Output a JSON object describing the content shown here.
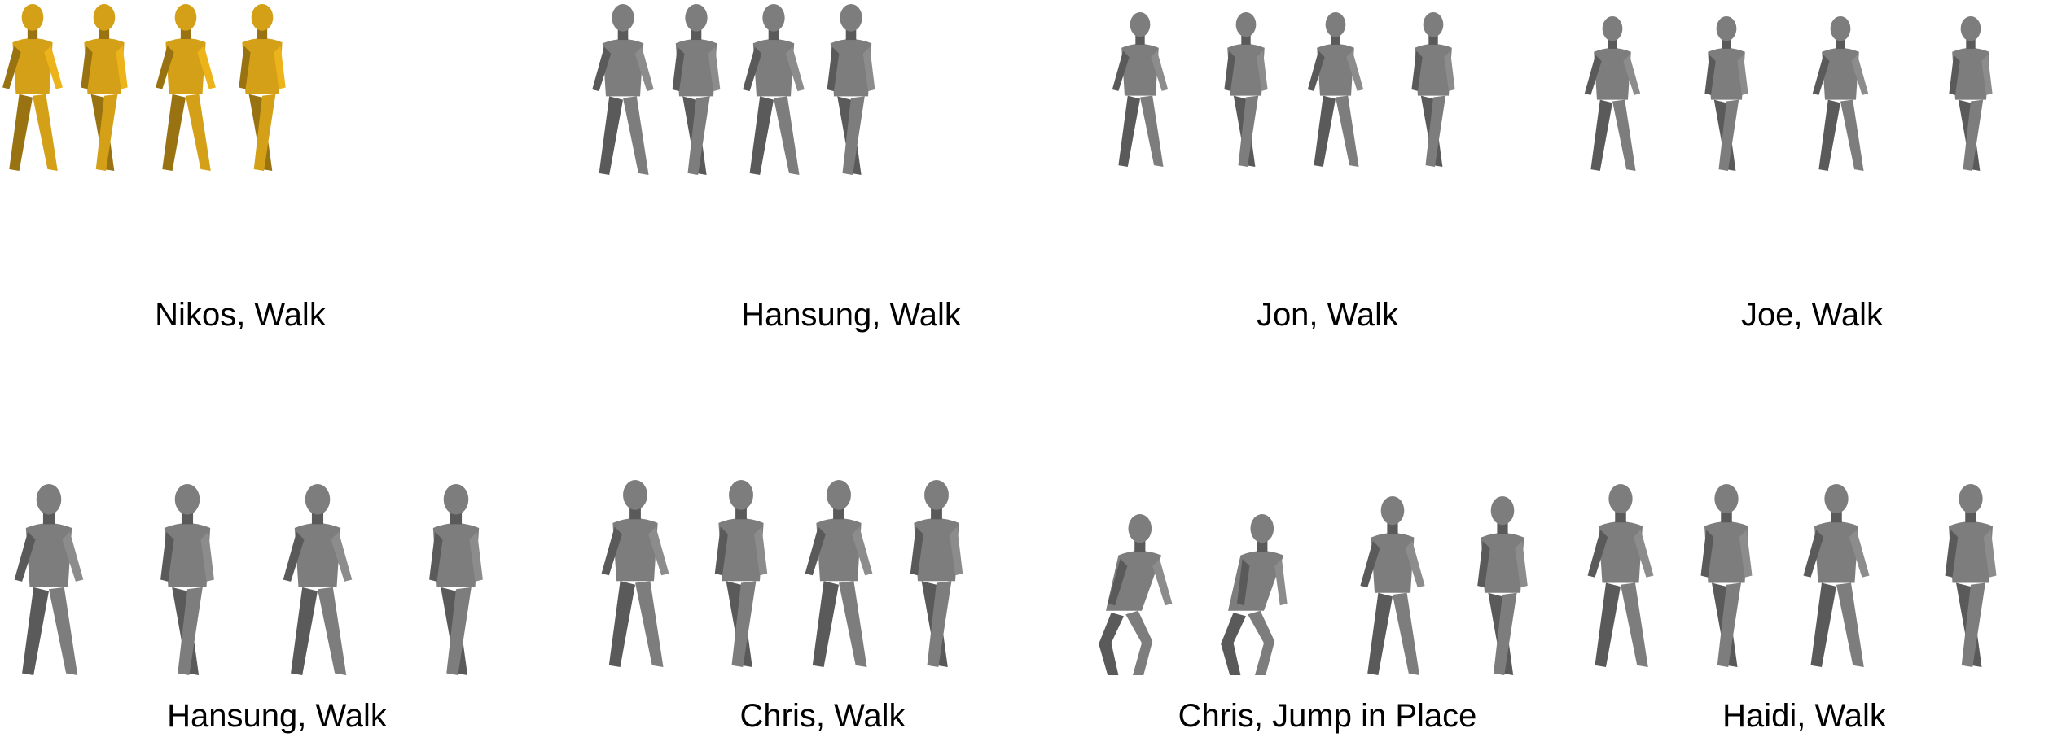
{
  "colors": {
    "gold": "#d4a017",
    "gray": "#7d7d7d",
    "background": "#ffffff"
  },
  "rows": [
    {
      "panels": [
        {
          "caption": "Nikos, Walk",
          "mesh_color": "gold",
          "figures": 4
        },
        {
          "caption": "Hansung, Walk",
          "mesh_color": "gray",
          "figures": 4
        },
        {
          "caption": "Jon, Walk",
          "mesh_color": "gray",
          "figures": 4
        },
        {
          "caption": "Joe, Walk",
          "mesh_color": "gray",
          "figures": 4
        }
      ]
    },
    {
      "panels": [
        {
          "caption": "Hansung, Walk",
          "mesh_color": "gray",
          "figures": 4
        },
        {
          "caption": "Chris, Walk",
          "mesh_color": "gray",
          "figures": 4
        },
        {
          "caption": "Chris, Jump in Place",
          "mesh_color": "gray",
          "figures": 4
        },
        {
          "caption": "Haidi, Walk",
          "mesh_color": "gray",
          "figures": 4
        }
      ]
    }
  ]
}
